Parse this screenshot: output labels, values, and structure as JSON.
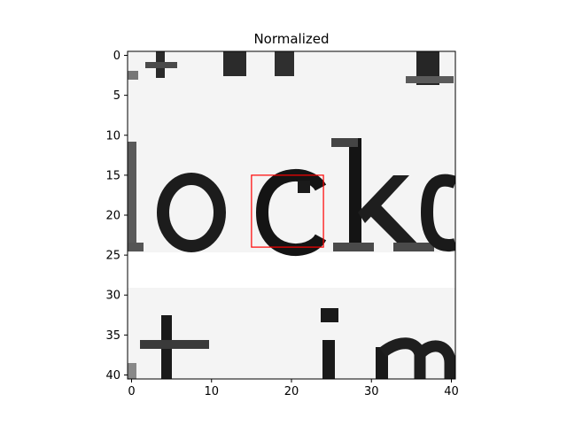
{
  "chart_data": {
    "type": "heatmap",
    "title": "Normalized",
    "xlabel": "",
    "ylabel": "",
    "colormap": "gray",
    "xlim": [
      -0.5,
      40.5
    ],
    "ylim": [
      40.5,
      -0.5
    ],
    "x_ticks": [
      0,
      10,
      20,
      30,
      40
    ],
    "y_ticks": [
      0,
      5,
      10,
      15,
      20,
      25,
      30,
      35,
      40
    ],
    "grid": false,
    "legend": "none",
    "image_content": "grayscale crop of printed text showing the letters \"ockc\" (partial) with partial characters from lines above and below",
    "visible_text_in_image": "ockc",
    "highlight_box": {
      "color": "#ff0000",
      "x_range": [
        15,
        24
      ],
      "y_range": [
        15,
        24
      ]
    }
  }
}
